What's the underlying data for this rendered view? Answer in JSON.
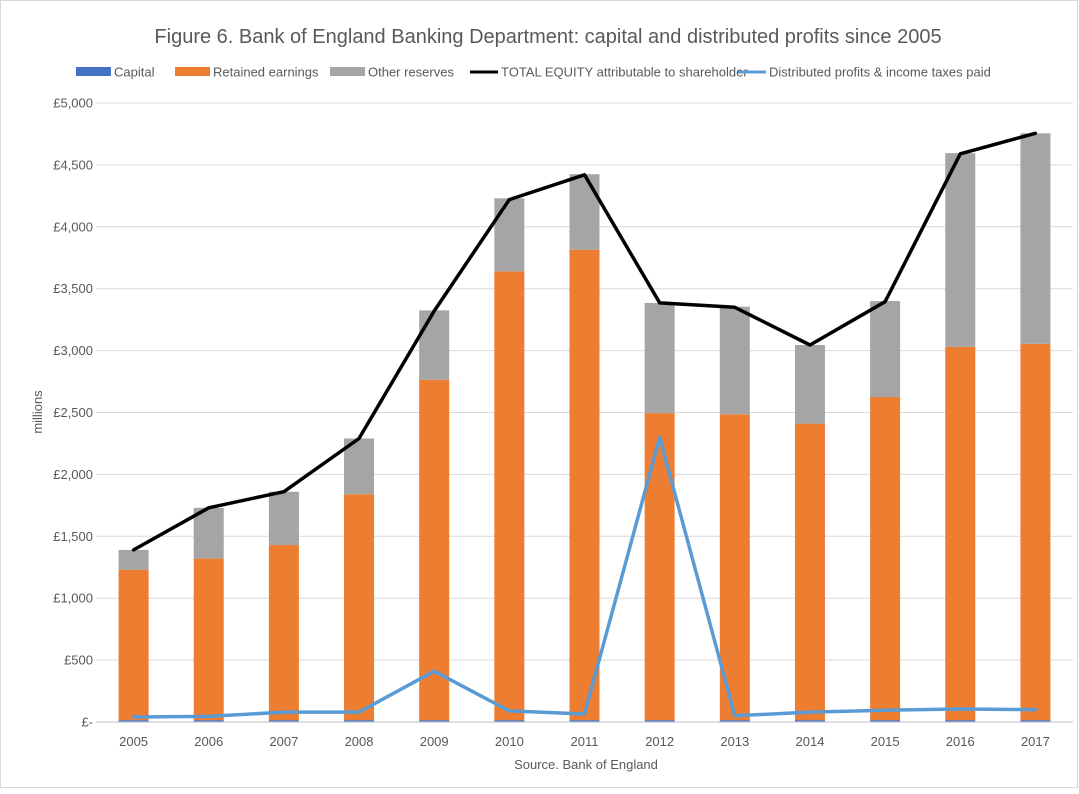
{
  "chart_data": {
    "type": "bar",
    "title": "Figure 6. Bank of England Banking Department: capital and distributed profits since 2005",
    "xlabel": "Source. Bank of England",
    "ylabel": "millions",
    "ylim": [
      0,
      5000
    ],
    "ytick_labels": [
      "£-",
      "£500",
      "£1,000",
      "£1,500",
      "£2,000",
      "£2,500",
      "£3,000",
      "£3,500",
      "£4,000",
      "£4,500",
      "£5,000"
    ],
    "grid": true,
    "legend_position": "top",
    "categories": [
      "2005",
      "2006",
      "2007",
      "2008",
      "2009",
      "2010",
      "2011",
      "2012",
      "2013",
      "2014",
      "2015",
      "2016",
      "2017"
    ],
    "series": [
      {
        "name": "Capital",
        "kind": "stacked-bar",
        "color": "#4472C4",
        "values": [
          15,
          15,
          15,
          15,
          15,
          15,
          15,
          15,
          15,
          15,
          15,
          15,
          15
        ]
      },
      {
        "name": "Retained earnings",
        "kind": "stacked-bar",
        "color": "#ED7D31",
        "values": [
          1215,
          1305,
          1415,
          1825,
          2750,
          3625,
          3800,
          2480,
          2470,
          2395,
          2610,
          3015,
          3040
        ]
      },
      {
        "name": "Other reserves",
        "kind": "stacked-bar",
        "color": "#A5A5A5",
        "values": [
          160,
          410,
          430,
          450,
          560,
          590,
          610,
          890,
          870,
          635,
          775,
          1565,
          1700
        ]
      },
      {
        "name": "TOTAL EQUITY attributable to shareholder",
        "kind": "line",
        "color": "#000000",
        "values": [
          1390,
          1730,
          1860,
          2290,
          3320,
          4220,
          4420,
          3385,
          3350,
          3045,
          3395,
          4590,
          4755
        ]
      },
      {
        "name": "Distributed profits & income taxes paid",
        "kind": "line",
        "color": "#5B9BD5",
        "values": [
          40,
          45,
          80,
          80,
          410,
          90,
          65,
          2300,
          50,
          80,
          95,
          105,
          100
        ]
      }
    ]
  }
}
